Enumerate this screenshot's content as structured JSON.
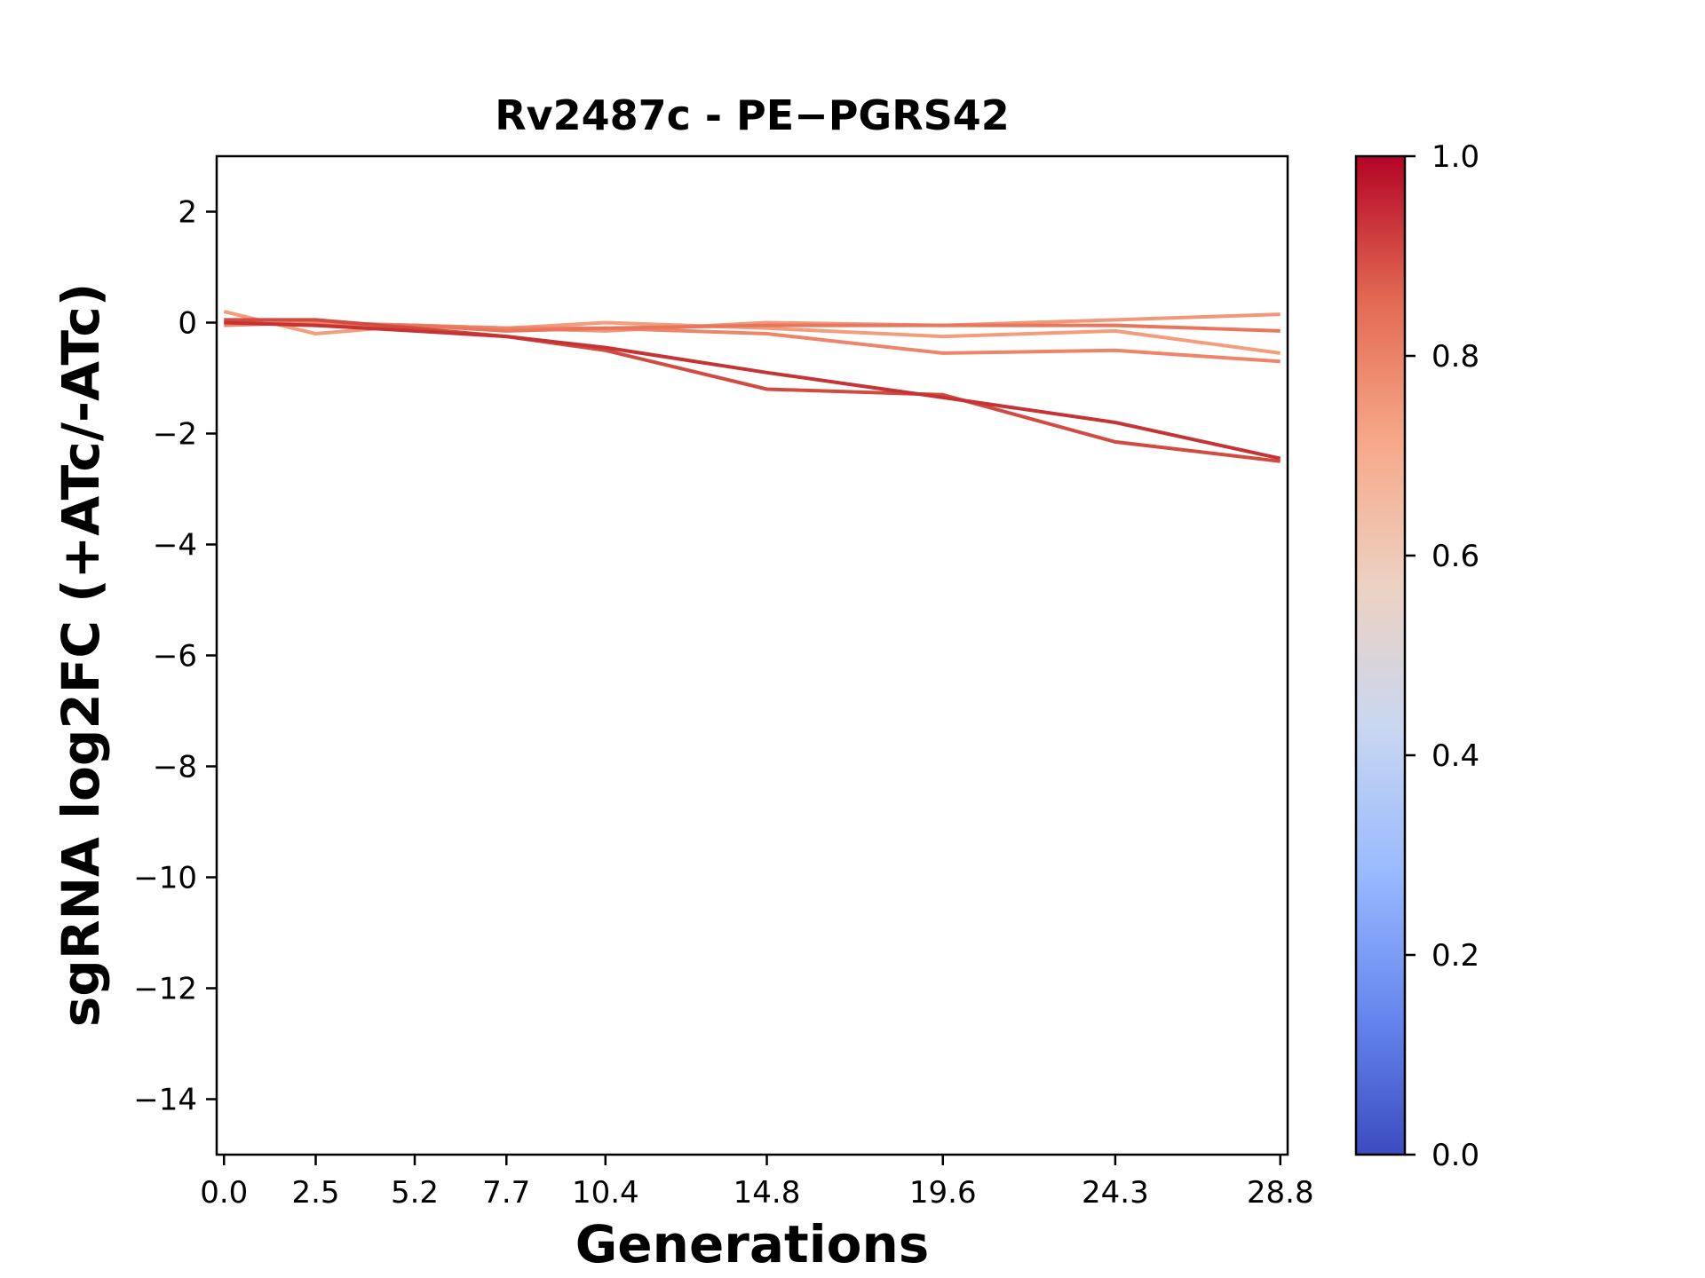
{
  "chart_data": {
    "type": "line",
    "title": "Rv2487c - PE−PGRS42",
    "xlabel": "Generations",
    "ylabel": "sgRNA log2FC (+ATc/-ATc)",
    "x": [
      0.0,
      2.5,
      5.2,
      7.7,
      10.4,
      14.8,
      19.6,
      24.3,
      28.8
    ],
    "x_tick_labels": [
      "0.0",
      "2.5",
      "5.2",
      "7.7",
      "10.4",
      "14.8",
      "19.6",
      "24.3",
      "28.8"
    ],
    "xlim": [
      -0.2,
      29.0
    ],
    "ylim": [
      -15,
      3
    ],
    "y_ticks": [
      2,
      0,
      -2,
      -4,
      -6,
      -8,
      -10,
      -12,
      -14
    ],
    "y_tick_labels": [
      "2",
      "0",
      "−2",
      "−4",
      "−6",
      "−8",
      "−10",
      "−12",
      "−14"
    ],
    "grid": false,
    "series": [
      {
        "color_value": 0.7,
        "color": "#f39d7c",
        "values": [
          0.2,
          -0.2,
          -0.05,
          -0.1,
          0.0,
          -0.1,
          -0.25,
          -0.15,
          -0.55
        ]
      },
      {
        "color_value": 0.72,
        "color": "#f2977a",
        "values": [
          0.05,
          0.0,
          -0.05,
          -0.1,
          -0.15,
          0.0,
          -0.05,
          0.05,
          0.15
        ]
      },
      {
        "color_value": 0.76,
        "color": "#ee8468",
        "values": [
          -0.05,
          0.0,
          -0.05,
          -0.1,
          -0.1,
          -0.2,
          -0.55,
          -0.5,
          -0.7
        ]
      },
      {
        "color_value": 0.8,
        "color": "#e8765c",
        "values": [
          0.0,
          -0.05,
          -0.05,
          -0.15,
          -0.1,
          -0.05,
          -0.05,
          -0.05,
          -0.15
        ]
      },
      {
        "color_value": 0.9,
        "color": "#d24b40",
        "values": [
          0.05,
          0.05,
          -0.1,
          -0.25,
          -0.5,
          -1.2,
          -1.3,
          -2.15,
          -2.5
        ]
      },
      {
        "color_value": 0.95,
        "color": "#c53334",
        "values": [
          0.0,
          -0.05,
          -0.15,
          -0.25,
          -0.45,
          -0.9,
          -1.35,
          -1.8,
          -2.45
        ]
      }
    ],
    "colorbar": {
      "colormap": "coolwarm",
      "range": [
        0.0,
        1.0
      ],
      "ticks": [
        1.0,
        0.8,
        0.6,
        0.4,
        0.2,
        0.0
      ],
      "tick_labels": [
        "1.0",
        "0.8",
        "0.6",
        "0.4",
        "0.2",
        "0.0"
      ],
      "stops": [
        "#3b4cc0",
        "#6788ee",
        "#9abbff",
        "#c9d7f0",
        "#edd1c2",
        "#f7a889",
        "#e26952",
        "#b40426"
      ]
    }
  }
}
